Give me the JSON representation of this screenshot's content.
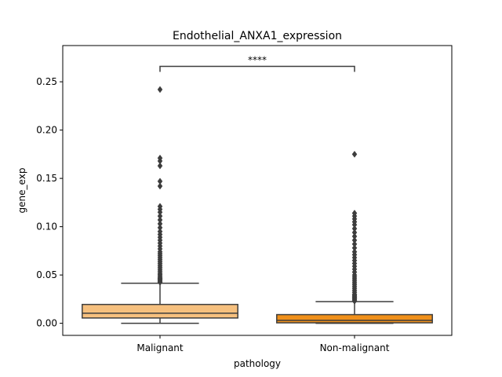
{
  "chart_data": {
    "type": "box",
    "title": "Endothelial_ANXA1_expression",
    "xlabel": "pathology",
    "ylabel": "gene_exp",
    "ylim": [
      -0.0125,
      0.2875
    ],
    "yticks": [
      0.0,
      0.05,
      0.1,
      0.15,
      0.2,
      0.25
    ],
    "ytick_labels": [
      "0.00",
      "0.05",
      "0.10",
      "0.15",
      "0.20",
      "0.25"
    ],
    "categories": [
      "Malignant",
      "Non-malignant"
    ],
    "colors": [
      "#f6c07e",
      "#f0901a"
    ],
    "boxes": [
      {
        "name": "Malignant",
        "whisker_low": 0.0,
        "q1": 0.0055,
        "median": 0.0105,
        "q3": 0.0195,
        "whisker_high": 0.0415,
        "outliers": [
          0.0425,
          0.0435,
          0.0445,
          0.0455,
          0.0465,
          0.0475,
          0.049,
          0.0505,
          0.052,
          0.054,
          0.056,
          0.058,
          0.06,
          0.062,
          0.064,
          0.066,
          0.068,
          0.07,
          0.072,
          0.074,
          0.077,
          0.08,
          0.083,
          0.086,
          0.089,
          0.092,
          0.095,
          0.099,
          0.103,
          0.107,
          0.111,
          0.115,
          0.118,
          0.121,
          0.142,
          0.147,
          0.163,
          0.168,
          0.171,
          0.242
        ]
      },
      {
        "name": "Non-malignant",
        "whisker_low": 0.0,
        "q1": 0.0005,
        "median": 0.003,
        "q3": 0.009,
        "whisker_high": 0.0225,
        "outliers": [
          0.023,
          0.024,
          0.025,
          0.026,
          0.027,
          0.028,
          0.029,
          0.03,
          0.032,
          0.034,
          0.036,
          0.038,
          0.04,
          0.042,
          0.044,
          0.046,
          0.048,
          0.05,
          0.053,
          0.056,
          0.059,
          0.062,
          0.065,
          0.068,
          0.071,
          0.074,
          0.078,
          0.082,
          0.086,
          0.09,
          0.094,
          0.098,
          0.102,
          0.105,
          0.108,
          0.111,
          0.114,
          0.175
        ]
      }
    ],
    "annotation": {
      "text": "****",
      "between": [
        "Malignant",
        "Non-malignant"
      ],
      "y": 0.266
    },
    "grid": false,
    "legend": "none"
  }
}
